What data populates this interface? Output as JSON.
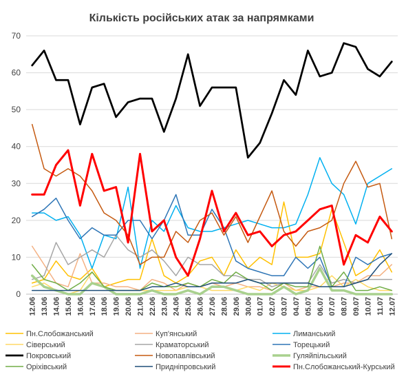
{
  "chart_data": {
    "type": "line",
    "title": "Кількість російських атак за напрямками",
    "xlabel": "",
    "ylabel": "",
    "ylim": [
      0,
      70
    ],
    "yticks": [
      0,
      10,
      20,
      30,
      40,
      50,
      60,
      70
    ],
    "grid": true,
    "legend_position": "bottom",
    "categories": [
      "12.06",
      "13.06",
      "14.06",
      "15.06",
      "16.06",
      "17.06",
      "18.06",
      "19.06",
      "20.06",
      "21.06",
      "22.06",
      "23.06",
      "24.06",
      "25.06",
      "26.06",
      "27.06",
      "28.06",
      "29.06",
      "30.06",
      "01.07",
      "02.07",
      "03.07",
      "04.07",
      "05.07",
      "06.07",
      "07.07",
      "08.07",
      "09.07",
      "10.07",
      "11.07",
      "12.07"
    ],
    "x_tick_labels": [
      "12.06",
      "13.06",
      "14.06",
      "15.06",
      "16.06",
      "17.06",
      "18.06",
      "19.06",
      "20.06",
      "21.06",
      "22.06",
      "23.06",
      "24.06",
      "25.06",
      "26.06",
      "27.06",
      "28.06",
      "29.06",
      "30.06",
      "01.07",
      "02.07",
      "03.07",
      "04.07",
      "05.07",
      "06.07",
      "07.07",
      "08.07",
      "09.07",
      "10.07",
      "11.07",
      "12.07"
    ],
    "series": [
      {
        "name": "Пн.Слобожанський",
        "color": "#FFC000",
        "width": 1.5,
        "values": [
          3,
          4,
          9,
          5,
          4,
          7,
          2,
          3,
          4,
          4,
          15,
          5,
          3,
          5,
          9,
          10,
          5,
          12,
          7,
          10,
          8,
          25,
          10,
          10,
          11,
          23,
          14,
          5,
          7,
          12,
          6
        ]
      },
      {
        "name": "Куп'янський",
        "color": "#F4B183",
        "width": 1.5,
        "values": [
          13,
          8,
          3,
          2,
          11,
          3,
          3,
          2,
          2,
          1,
          4,
          3,
          1,
          3,
          2,
          3,
          2,
          3,
          2,
          2,
          1,
          3,
          1,
          2,
          2,
          2,
          3,
          3,
          5,
          5,
          8
        ]
      },
      {
        "name": "Лиманський",
        "color": "#00B0F0",
        "width": 1.5,
        "values": [
          22,
          22,
          20,
          21,
          16,
          7,
          16,
          15,
          29,
          7,
          20,
          17,
          24,
          18,
          17,
          17,
          18,
          19,
          20,
          19,
          18,
          18,
          19,
          27,
          37,
          30,
          27,
          19,
          30,
          32,
          34
        ]
      },
      {
        "name": "Сіверський",
        "color": "#FFD966",
        "width": 1.5,
        "values": [
          2,
          3,
          1,
          0,
          1,
          6,
          2,
          1,
          1,
          1,
          1,
          1,
          1,
          2,
          2,
          1,
          1,
          1,
          2,
          1,
          3,
          2,
          1,
          1,
          2,
          5,
          2,
          4,
          2,
          1,
          1
        ]
      },
      {
        "name": "Краматорський",
        "color": "#A6A6A6",
        "width": 1.5,
        "values": [
          4,
          5,
          14,
          8,
          10,
          12,
          10,
          16,
          12,
          10,
          12,
          9,
          5,
          10,
          8,
          8,
          5,
          5,
          4,
          4,
          2,
          3,
          3,
          3,
          8,
          3,
          4,
          3,
          4,
          4,
          4
        ]
      },
      {
        "name": "Торецький",
        "color": "#2E75B6",
        "width": 1.5,
        "values": [
          21,
          23,
          26,
          20,
          15,
          18,
          16,
          16,
          20,
          20,
          15,
          20,
          27,
          16,
          16,
          23,
          18,
          9,
          7,
          6,
          5,
          5,
          10,
          7,
          10,
          2,
          2,
          10,
          8,
          10,
          11
        ]
      },
      {
        "name": "Покровський",
        "color": "#000000",
        "width": 2.75,
        "values": [
          62,
          66,
          58,
          58,
          46,
          56,
          57,
          48,
          52,
          53,
          53,
          44,
          53,
          65,
          51,
          56,
          56,
          56,
          37,
          41,
          49,
          58,
          54,
          66,
          59,
          60,
          68,
          67,
          61,
          59,
          63
        ]
      },
      {
        "name": "Новопавлівський",
        "color": "#C55A11",
        "width": 1.5,
        "values": [
          46,
          34,
          32,
          34,
          32,
          28,
          22,
          20,
          16,
          8,
          10,
          10,
          17,
          14,
          20,
          22,
          16,
          21,
          14,
          21,
          28,
          17,
          13,
          17,
          18,
          20,
          30,
          36,
          29,
          30,
          15
        ]
      },
      {
        "name": "Гуляйпільський",
        "color": "#A9D18E",
        "width": 3.5,
        "values": [
          5,
          2,
          1,
          0,
          0,
          3,
          2,
          0,
          0,
          0,
          1,
          0,
          0,
          1,
          0,
          2,
          2,
          1,
          0,
          0,
          0,
          2,
          0,
          1,
          7,
          1,
          1,
          0,
          0,
          0,
          0
        ]
      },
      {
        "name": "Оріхівський",
        "color": "#70AD47",
        "width": 1.5,
        "values": [
          8,
          4,
          3,
          1,
          3,
          6,
          2,
          1,
          1,
          1,
          3,
          2,
          2,
          3,
          2,
          4,
          3,
          6,
          4,
          3,
          1,
          3,
          2,
          2,
          13,
          2,
          6,
          1,
          1,
          2,
          1
        ]
      },
      {
        "name": "Придніпровський",
        "color": "#1F4E79",
        "width": 1.5,
        "values": [
          1,
          1,
          1,
          1,
          1,
          1,
          1,
          1,
          1,
          1,
          2,
          2,
          3,
          2,
          2,
          3,
          3,
          3,
          4,
          3,
          3,
          3,
          3,
          3,
          2,
          2,
          2,
          3,
          4,
          8,
          11
        ]
      },
      {
        "name": "Пн.Слобожанський-Курський",
        "color": "#FF0000",
        "width": 3,
        "values": [
          27,
          27,
          35,
          39,
          24,
          38,
          28,
          29,
          14,
          38,
          17,
          20,
          10,
          5,
          15,
          28,
          17,
          22,
          16,
          17,
          13,
          16,
          17,
          20,
          23,
          24,
          8,
          16,
          14,
          21,
          17
        ]
      }
    ]
  }
}
